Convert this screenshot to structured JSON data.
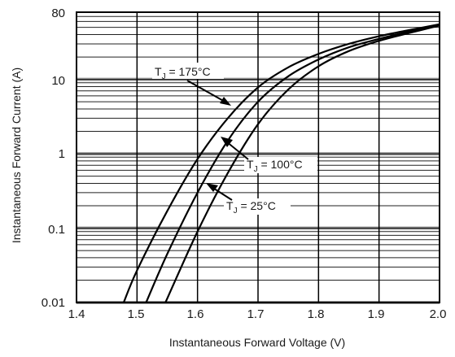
{
  "chart_data": {
    "type": "line",
    "xlabel": "Instantaneous Forward Voltage (V)",
    "ylabel": "Instantaneous Forward Current (A)",
    "xlim": [
      1.4,
      2.0
    ],
    "ylim": [
      0.01,
      80
    ],
    "yscale": "log",
    "grid": true,
    "x_ticks": [
      "1.4",
      "1.5",
      "1.6",
      "1.7",
      "1.8",
      "1.9",
      "2.0"
    ],
    "y_ticks": [
      "0.01",
      "0.1",
      "1",
      "10",
      "80"
    ],
    "series": [
      {
        "name": "TJ = 175°C",
        "label_main": "T",
        "label_sub": "J",
        "label_rest": " = 175°C",
        "x": [
          1.478,
          1.5,
          1.55,
          1.6,
          1.65,
          1.7,
          1.75,
          1.8,
          1.85,
          1.9,
          1.95,
          2.0
        ],
        "y": [
          0.01,
          0.027,
          0.17,
          0.85,
          3.0,
          7.8,
          14.5,
          22.0,
          30.0,
          38.0,
          46.0,
          55.0
        ]
      },
      {
        "name": "TJ = 100°C",
        "label_main": "T",
        "label_sub": "J",
        "label_rest": " = 100°C",
        "x": [
          1.515,
          1.55,
          1.6,
          1.65,
          1.7,
          1.75,
          1.8,
          1.85,
          1.9,
          1.95,
          2.0
        ],
        "y": [
          0.01,
          0.045,
          0.3,
          1.5,
          5.0,
          11.0,
          18.5,
          27.0,
          35.0,
          44.0,
          54.0
        ]
      },
      {
        "name": "TJ = 25°C",
        "label_main": "T",
        "label_sub": "J",
        "label_rest": " = 25°C",
        "x": [
          1.547,
          1.6,
          1.65,
          1.7,
          1.75,
          1.8,
          1.85,
          1.9,
          1.95,
          2.0
        ],
        "y": [
          0.01,
          0.09,
          0.55,
          2.5,
          7.3,
          15.0,
          24.0,
          33.0,
          42.0,
          53.0
        ]
      }
    ]
  }
}
